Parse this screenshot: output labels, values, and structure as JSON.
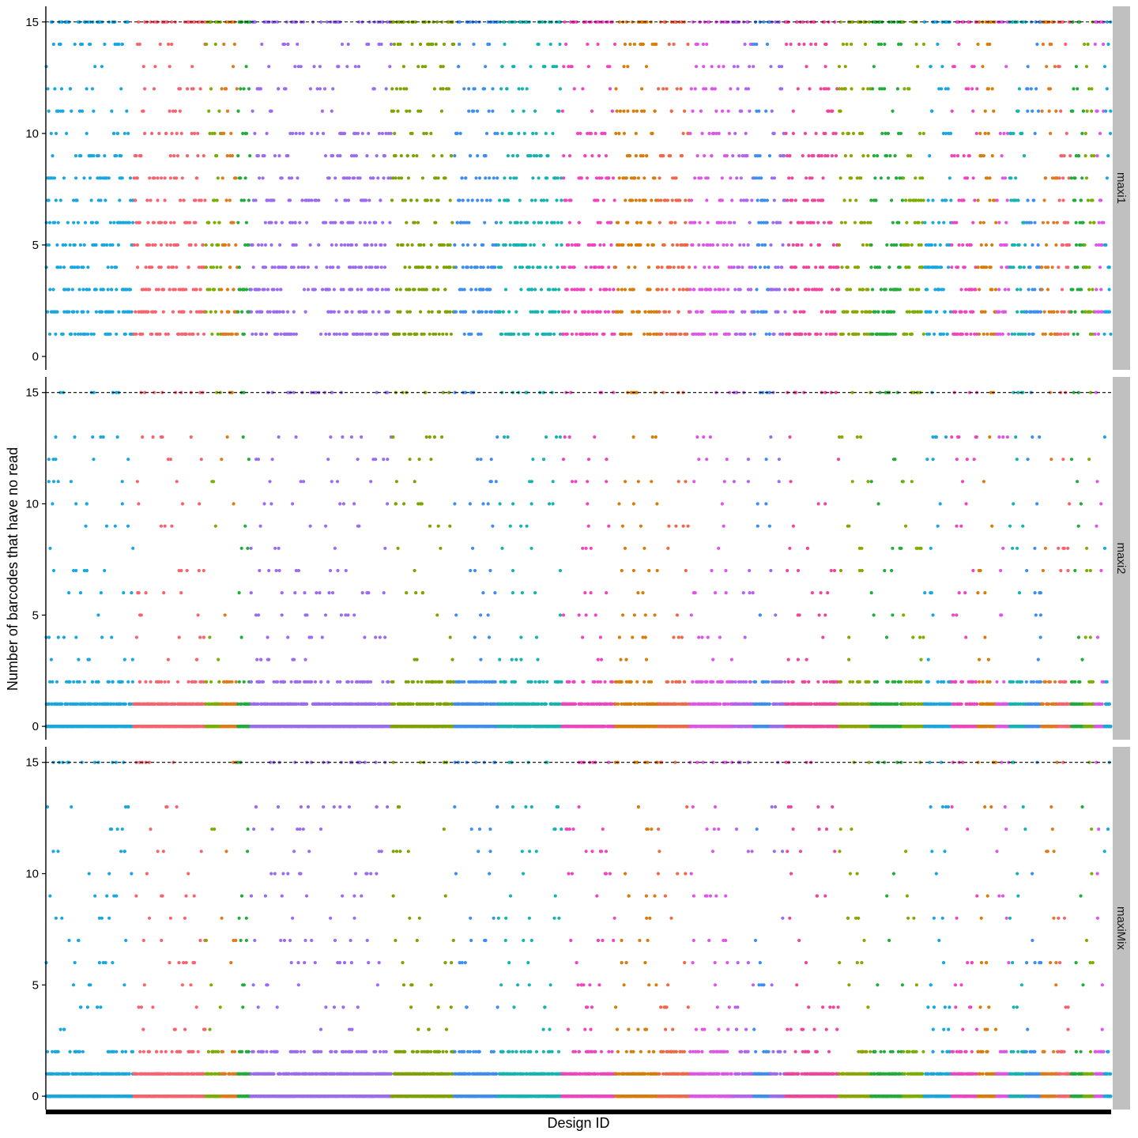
{
  "chart_data": {
    "type": "scatter",
    "title": "",
    "xlabel": "Design ID",
    "ylabel": "Number of barcodes that have no read",
    "ylim": [
      -0.6,
      15.7
    ],
    "yticks": [
      0,
      5,
      10,
      15
    ],
    "ytick_labels": [
      "0",
      "5",
      "10",
      "15"
    ],
    "reference_line": {
      "y": 15,
      "style": "dashed",
      "color": "#000000"
    },
    "x_axis_ticks": "one per design (too dense to read)",
    "grid": false,
    "legend": "none",
    "facets": [
      {
        "label": "maxi1",
        "profile": "spread"
      },
      {
        "label": "maxi2",
        "profile": "concentrated"
      },
      {
        "label": "maxiMix",
        "profile": "concentrated"
      }
    ],
    "groups": [
      {
        "color": "#19A7E0",
        "start": 0.0,
        "end": 0.082
      },
      {
        "color": "#F8636F",
        "start": 0.082,
        "end": 0.15
      },
      {
        "color": "#7CAE00",
        "start": 0.15,
        "end": 0.165
      },
      {
        "color": "#E07A1A",
        "start": 0.165,
        "end": 0.18
      },
      {
        "color": "#21AC3B",
        "start": 0.18,
        "end": 0.192
      },
      {
        "color": "#9B6BF0",
        "start": 0.192,
        "end": 0.325
      },
      {
        "color": "#7CA300",
        "start": 0.325,
        "end": 0.383
      },
      {
        "color": "#3E8DF0",
        "start": 0.383,
        "end": 0.425
      },
      {
        "color": "#15B4B0",
        "start": 0.425,
        "end": 0.485
      },
      {
        "color": "#F045BE",
        "start": 0.485,
        "end": 0.535
      },
      {
        "color": "#D87C0A",
        "start": 0.535,
        "end": 0.575
      },
      {
        "color": "#F06848",
        "start": 0.575,
        "end": 0.605
      },
      {
        "color": "#E055E8",
        "start": 0.605,
        "end": 0.645
      },
      {
        "color": "#B563F0",
        "start": 0.645,
        "end": 0.665
      },
      {
        "color": "#3C8EF0",
        "start": 0.665,
        "end": 0.68
      },
      {
        "color": "#9B6BF0",
        "start": 0.68,
        "end": 0.695
      },
      {
        "color": "#F0459A",
        "start": 0.695,
        "end": 0.745
      },
      {
        "color": "#8CA500",
        "start": 0.745,
        "end": 0.775
      },
      {
        "color": "#21AC3B",
        "start": 0.775,
        "end": 0.805
      },
      {
        "color": "#7CAE00",
        "start": 0.805,
        "end": 0.825
      },
      {
        "color": "#19A7E0",
        "start": 0.825,
        "end": 0.85
      },
      {
        "color": "#F045BE",
        "start": 0.85,
        "end": 0.875
      },
      {
        "color": "#D87C0A",
        "start": 0.875,
        "end": 0.892
      },
      {
        "color": "#E055E8",
        "start": 0.892,
        "end": 0.905
      },
      {
        "color": "#15B4B0",
        "start": 0.905,
        "end": 0.92
      },
      {
        "color": "#3C8EF0",
        "start": 0.92,
        "end": 0.935
      },
      {
        "color": "#E07A1A",
        "start": 0.935,
        "end": 0.95
      },
      {
        "color": "#F8636F",
        "start": 0.95,
        "end": 0.962
      },
      {
        "color": "#21AC3B",
        "start": 0.962,
        "end": 0.975
      },
      {
        "color": "#7CAE00",
        "start": 0.975,
        "end": 0.985
      },
      {
        "color": "#E055E8",
        "start": 0.985,
        "end": 0.993
      },
      {
        "color": "#19A7E0",
        "start": 0.993,
        "end": 1.0
      }
    ],
    "n_designs": 900,
    "value_range": [
      0,
      15
    ]
  },
  "colors": {
    "strip_background": "#C0C0C0",
    "axis_line": "#000000",
    "background": "#FFFFFF"
  }
}
